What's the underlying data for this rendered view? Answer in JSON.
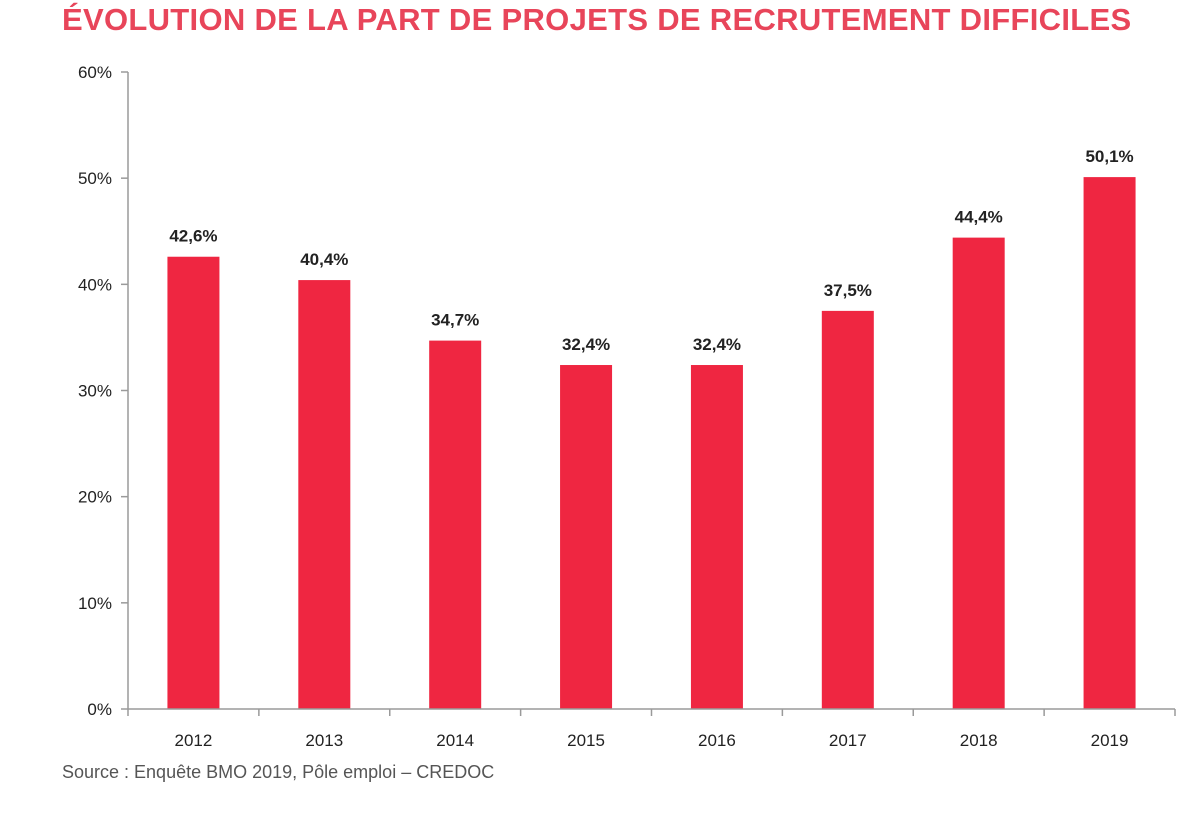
{
  "chart_data": {
    "type": "bar",
    "title": "ÉVOLUTION DE LA PART DE PROJETS DE RECRUTEMENT DIFFICILES",
    "categories": [
      "2012",
      "2013",
      "2014",
      "2015",
      "2016",
      "2017",
      "2018",
      "2019"
    ],
    "values": [
      42.6,
      40.4,
      34.7,
      32.4,
      32.4,
      37.5,
      44.4,
      50.1
    ],
    "data_labels": [
      "42,6%",
      "40,4%",
      "34,7%",
      "32,4%",
      "32,4%",
      "37,5%",
      "44,4%",
      "50,1%"
    ],
    "ylim": [
      0,
      60
    ],
    "yticks": [
      0,
      10,
      20,
      30,
      40,
      50,
      60
    ],
    "ytick_labels": [
      "0%",
      "10%",
      "20%",
      "30%",
      "40%",
      "50%",
      "60%"
    ],
    "xlabel": "",
    "ylabel": "",
    "grid": false,
    "legend": "none",
    "bar_color": "#ef2641",
    "source": "Source : Enquête BMO 2019, Pôle emploi – CREDOC"
  }
}
